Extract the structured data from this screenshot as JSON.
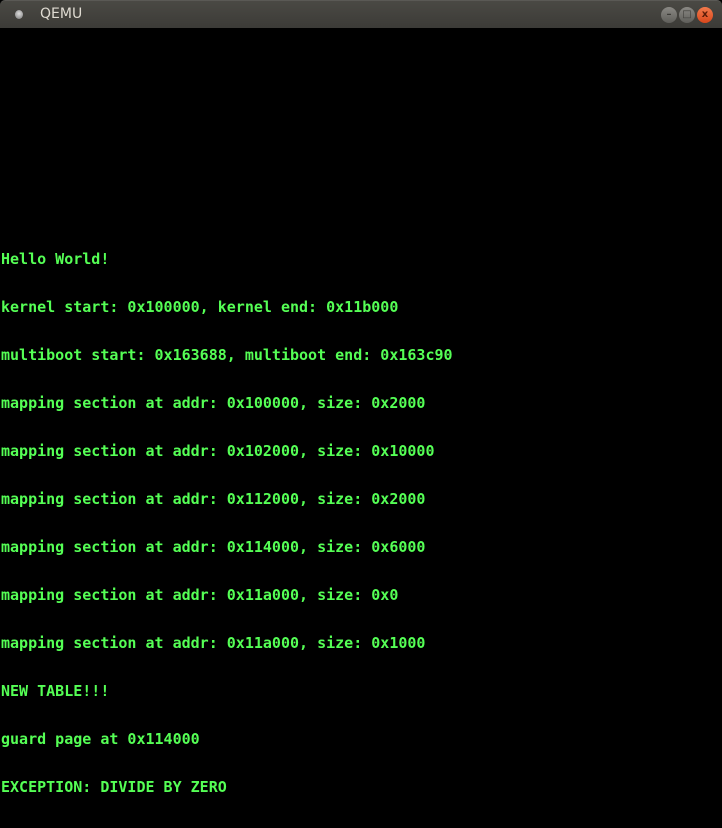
{
  "window": {
    "title": "QEMU",
    "buttons": {
      "minimize": "–",
      "maximize": "□",
      "close": "x"
    },
    "colors": {
      "text": "#55ff55",
      "background": "#000000"
    }
  },
  "console": {
    "lines": [
      "Hello World!",
      "kernel start: 0x100000, kernel end: 0x11b000",
      "multiboot start: 0x163688, multiboot end: 0x163c90",
      "mapping section at addr: 0x100000, size: 0x2000",
      "mapping section at addr: 0x102000, size: 0x10000",
      "mapping section at addr: 0x112000, size: 0x2000",
      "mapping section at addr: 0x114000, size: 0x6000",
      "mapping section at addr: 0x11a000, size: 0x0",
      "mapping section at addr: 0x11a000, size: 0x1000",
      "NEW TABLE!!!",
      "guard page at 0x114000",
      "EXCEPTION: DIVIDE BY ZERO"
    ]
  }
}
